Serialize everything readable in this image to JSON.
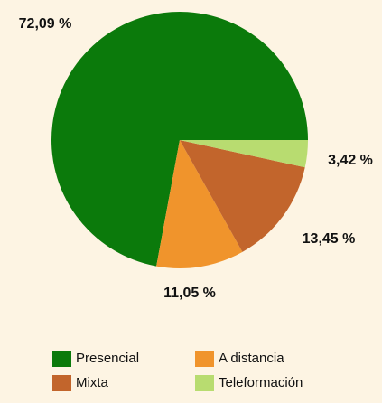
{
  "chart_data": {
    "type": "pie",
    "categories": [
      "Presencial",
      "A distancia",
      "Mixta",
      "Teleformación"
    ],
    "values": [
      72.09,
      11.05,
      13.45,
      3.42
    ],
    "value_labels": [
      "72,09 %",
      "11,05 %",
      "13,45 %",
      "3,42 %"
    ],
    "colors": [
      "#0b7a0b",
      "#f0942c",
      "#c2652c",
      "#b8dc70"
    ]
  }
}
